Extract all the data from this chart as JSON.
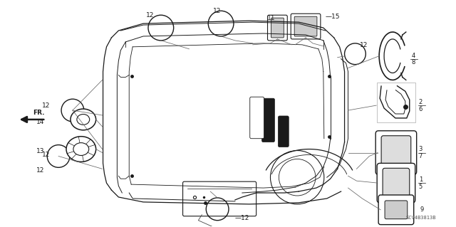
{
  "bg_color": "#ffffff",
  "diagram_code": "SCV4B3813B",
  "dark": "#1a1a1a",
  "gray": "#888888",
  "line_color": "#444444"
}
